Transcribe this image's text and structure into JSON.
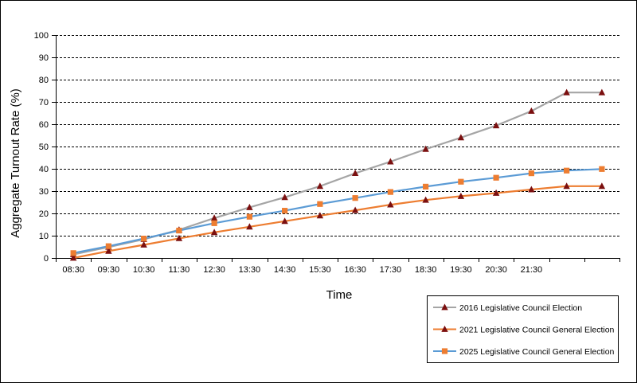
{
  "chart_data": {
    "type": "line",
    "xlabel": "Time",
    "ylabel": "Aggregate Turnout  Rate (%)",
    "ylim": [
      0,
      100
    ],
    "yticks": [
      0,
      10,
      20,
      30,
      40,
      50,
      60,
      70,
      80,
      90,
      100
    ],
    "grid": "horizontal dashed",
    "legend_position": "bottom-right",
    "categories": [
      "08:30",
      "09:30",
      "10:30",
      "11:30",
      "12:30",
      "13:30",
      "14:30",
      "15:30",
      "16:30",
      "17:30",
      "18:30",
      "19:30",
      "20:30",
      "21:30",
      "",
      ""
    ],
    "series": [
      {
        "name": "2016 Legislative Council Election",
        "line_color": "#a5a5a5",
        "marker": "triangle",
        "marker_color": "#7b0f0f",
        "values": [
          1.6,
          4.9,
          8.4,
          12.6,
          17.9,
          22.7,
          27.2,
          32.2,
          38.0,
          43.2,
          48.8,
          54.0,
          59.4,
          65.9,
          74.2,
          74.2
        ]
      },
      {
        "name": "2021 Legislative Council General Election",
        "line_color": "#ed7d31",
        "marker": "triangle",
        "marker_color": "#7b0f0f",
        "values": [
          0.0,
          3.1,
          5.9,
          8.8,
          11.5,
          14.0,
          16.5,
          19.0,
          21.4,
          23.9,
          26.0,
          27.7,
          29.1,
          30.7,
          32.2,
          32.2
        ]
      },
      {
        "name": "2025 Legislative Council General Election",
        "line_color": "#5b9bd5",
        "marker": "square",
        "marker_color": "#ed7d31",
        "values": [
          2.2,
          5.3,
          8.7,
          12.3,
          15.6,
          18.5,
          21.2,
          24.2,
          26.9,
          29.6,
          32.0,
          34.2,
          36.0,
          38.0,
          39.2,
          39.9
        ]
      }
    ]
  }
}
